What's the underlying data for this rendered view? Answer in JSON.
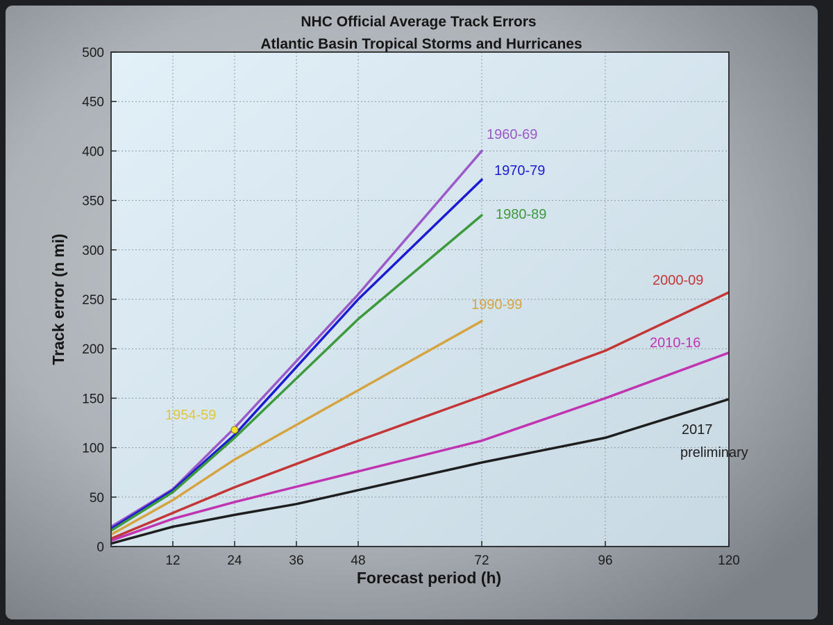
{
  "chart_data": {
    "type": "line",
    "title": "NHC Official Average Track Errors",
    "subtitle": "Atlantic Basin Tropical Storms and Hurricanes",
    "xlabel": "Forecast period (h)",
    "ylabel": "Track error (n mi)",
    "xlim": [
      0,
      120
    ],
    "ylim": [
      0,
      500
    ],
    "xticks": [
      12,
      24,
      36,
      48,
      72,
      96,
      120
    ],
    "yticks": [
      0,
      50,
      100,
      150,
      200,
      250,
      300,
      350,
      400,
      450,
      500
    ],
    "grid": true,
    "series": [
      {
        "name": "1960-69",
        "color": "#9b59c9",
        "x": [
          0,
          12,
          24,
          48,
          72
        ],
        "y": [
          20,
          58,
          120,
          255,
          400
        ]
      },
      {
        "name": "1970-79",
        "color": "#1b1bd2",
        "x": [
          0,
          12,
          24,
          48,
          72
        ],
        "y": [
          18,
          57,
          113,
          250,
          371
        ]
      },
      {
        "name": "1980-89",
        "color": "#3c9a3c",
        "x": [
          0,
          12,
          24,
          48,
          72
        ],
        "y": [
          16,
          55,
          110,
          230,
          335
        ]
      },
      {
        "name": "1990-99",
        "color": "#d6a341",
        "x": [
          0,
          12,
          24,
          48,
          72
        ],
        "y": [
          12,
          47,
          88,
          158,
          228
        ]
      },
      {
        "name": "2000-09",
        "color": "#c43636",
        "x": [
          0,
          12,
          24,
          48,
          72,
          96,
          120
        ],
        "y": [
          8,
          34,
          60,
          107,
          152,
          198,
          257
        ]
      },
      {
        "name": "2010-16",
        "color": "#c033b1",
        "x": [
          0,
          12,
          24,
          48,
          72,
          96,
          120
        ],
        "y": [
          6,
          28,
          45,
          76,
          107,
          150,
          196
        ]
      },
      {
        "name": "2017 preliminary",
        "color": "#1e1e1e",
        "x": [
          0,
          12,
          24,
          36,
          48,
          72,
          96,
          120
        ],
        "y": [
          3,
          20,
          32,
          43,
          57,
          85,
          110,
          149
        ]
      }
    ],
    "annotations": [
      {
        "text": "1954-59",
        "color": "#e1c63a",
        "x": 24,
        "y": 118
      }
    ]
  }
}
